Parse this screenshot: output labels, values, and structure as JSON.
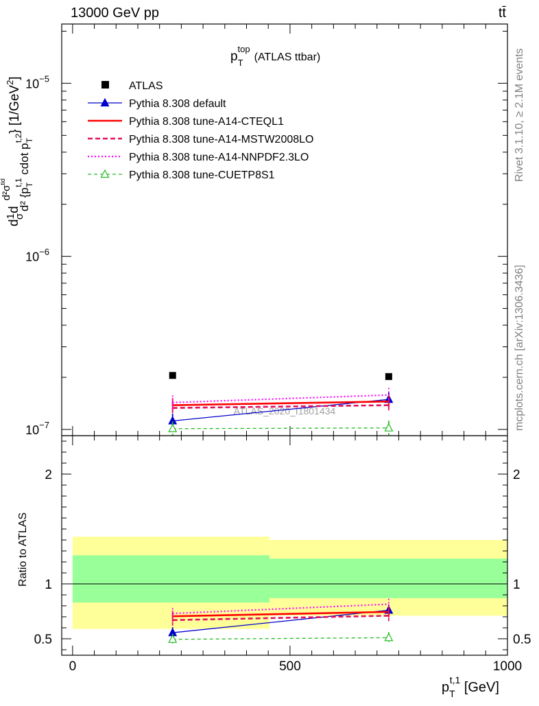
{
  "header": {
    "left": "13000 GeV pp",
    "right": "tt̄"
  },
  "side_labels": {
    "rivet": "Rivet 3.1.10, ≥ 2.1M events",
    "mcplots": "mcplots.cern.ch [arXiv:1306.3436]"
  },
  "watermark": "ATLAS_2020_I1801434",
  "colors": {
    "atlas": "#000000",
    "default": "#0000cc",
    "a14_cteql1": "#ff0000",
    "a14_mstw": "#e0115f",
    "a14_nnpdf": "#ff00ff",
    "cuetp8s1": "#22bb22",
    "band_outer": "#ffff99",
    "band_inner": "#99ff99"
  },
  "chart_data": [
    {
      "type": "line",
      "title": "p_T^top (ATLAS ttbar)",
      "title_parts": {
        "main": "p",
        "sub": "T",
        "sup": "top",
        "tail": "(ATLAS ttbar)"
      },
      "ylabel": "d²σ/d²{p_T^{t,1} cdot p_T^{t,2}} [1/GeV²]",
      "ylabel_parts": {
        "a": "d",
        "b": "1",
        "c": "σ",
        "d": "d",
        "e": "d²σ",
        "f": "tid",
        "g": "d² {p",
        "h": "T",
        "i": "t,1",
        "j": " cdot p",
        "k": "T",
        "l": "t,2",
        "m": "} [1/GeV",
        "n": "2",
        "o": "]"
      },
      "yscale": "log",
      "ylim": [
        9.2e-08,
        2.2e-05
      ],
      "xlim": [
        -25,
        1000
      ],
      "yticks": [
        {
          "value": 1e-07,
          "base": "10",
          "exp": "−7"
        },
        {
          "value": 1e-06,
          "base": "10",
          "exp": "−6"
        },
        {
          "value": 1e-05,
          "base": "10",
          "exp": "−5"
        }
      ],
      "x": [
        230,
        727
      ],
      "series": [
        {
          "name": "ATLAS",
          "values": [
            2.05e-07,
            2.02e-07
          ]
        },
        {
          "name": "Pythia 8.308 default",
          "values": [
            1.12e-07,
            1.49e-07
          ]
        },
        {
          "name": "Pythia 8.308 tune-A14-CTEQL1",
          "values": [
            1.38e-07,
            1.45e-07
          ]
        },
        {
          "name": "Pythia 8.308 tune-A14-MSTW2008LO",
          "values": [
            1.33e-07,
            1.38e-07
          ]
        },
        {
          "name": "Pythia 8.308 tune-A14-NNPDF2.3LO",
          "values": [
            1.43e-07,
            1.58e-07
          ]
        },
        {
          "name": "Pythia 8.308 tune-CUETP8S1",
          "values": [
            1.01e-07,
            1.02e-07
          ]
        }
      ],
      "legend_placement": "top-left"
    },
    {
      "type": "line",
      "ylabel": "Ratio to ATLAS",
      "xlabel": "p_T^{t,1} [GeV]",
      "xlabel_parts": {
        "main": "p",
        "sub": "T",
        "sup": "t,1",
        "tail": " [GeV]"
      },
      "ylim": [
        0.35,
        2.35
      ],
      "xlim": [
        -25,
        1000
      ],
      "yticks": [
        "0.5",
        "1",
        "2"
      ],
      "xticks": [
        "0",
        "500",
        "1000"
      ],
      "reference_line": 1,
      "bands": [
        {
          "x_range": [
            0,
            453
          ],
          "outer": [
            0.59,
            1.43
          ],
          "inner": [
            0.83,
            1.26
          ]
        },
        {
          "x_range": [
            453,
            1000
          ],
          "outer": [
            0.71,
            1.4
          ],
          "inner": [
            0.87,
            1.23
          ]
        }
      ],
      "x": [
        230,
        727
      ],
      "series": [
        {
          "name": "Pythia 8.308 default",
          "values": [
            0.555,
            0.76
          ]
        },
        {
          "name": "Pythia 8.308 tune-A14-CTEQL1",
          "values": [
            0.705,
            0.745
          ]
        },
        {
          "name": "Pythia 8.308 tune-A14-MSTW2008LO",
          "values": [
            0.67,
            0.71
          ]
        },
        {
          "name": "Pythia 8.308 tune-A14-NNPDF2.3LO",
          "values": [
            0.73,
            0.815
          ]
        },
        {
          "name": "Pythia 8.308 tune-CUETP8S1",
          "values": [
            0.495,
            0.51
          ]
        }
      ]
    }
  ]
}
